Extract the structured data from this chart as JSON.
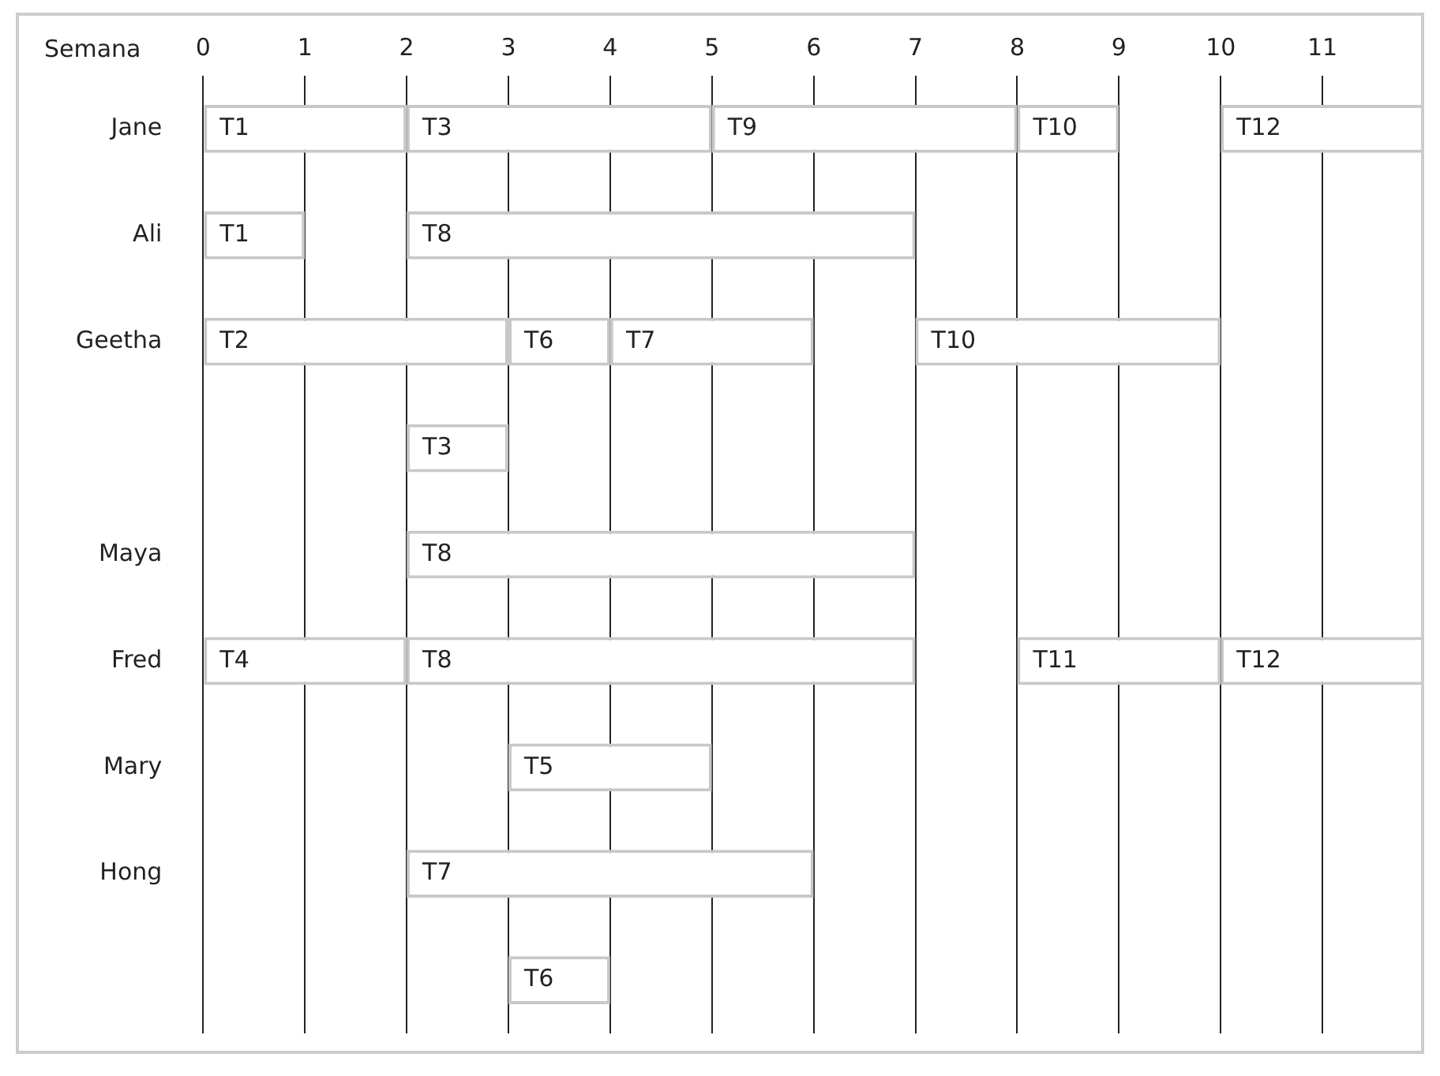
{
  "chart_data": {
    "type": "bar",
    "orientation": "horizontal",
    "xlabel": "Semana",
    "categories": [
      "Jane",
      "Ali",
      "Geetha",
      null,
      "Maya",
      "Fred",
      "Mary",
      "Hong",
      null
    ],
    "xlim": [
      0,
      12
    ],
    "xticks": [
      0,
      1,
      2,
      3,
      4,
      5,
      6,
      7,
      8,
      9,
      10,
      11
    ],
    "grid": "x",
    "legend": false,
    "series": [
      {
        "color": "#ffffff",
        "base": [
          0,
          0,
          0,
          2,
          2,
          0,
          3,
          2,
          3
        ],
        "values": [
          2,
          1,
          3,
          1,
          5,
          2,
          2,
          4,
          1
        ],
        "value_labels": [
          "T1",
          "T1",
          "T2",
          "T3",
          "T8",
          "T4",
          "T5",
          "T7",
          "T6"
        ]
      },
      {
        "color": "#ffffff",
        "base": [
          2,
          2,
          3,
          null,
          null,
          2,
          null,
          null,
          null
        ],
        "values": [
          3,
          5,
          1,
          null,
          null,
          5,
          null,
          null,
          null
        ],
        "value_labels": [
          "T3",
          "T8",
          "T6",
          null,
          null,
          "T8",
          null,
          null,
          null
        ]
      },
      {
        "color": "#ffffff",
        "base": [
          5,
          null,
          4,
          null,
          null,
          8,
          null,
          null,
          null
        ],
        "values": [
          3,
          null,
          2,
          null,
          null,
          2,
          null,
          null,
          null
        ],
        "value_labels": [
          "T9",
          null,
          "T7",
          null,
          null,
          "T11",
          null,
          null,
          null
        ]
      },
      {
        "color": "#ffffff",
        "base": [
          8,
          null,
          7,
          null,
          null,
          10,
          null,
          null,
          null
        ],
        "values": [
          1,
          null,
          3,
          null,
          null,
          2,
          null,
          null,
          null
        ],
        "value_labels": [
          "T10",
          null,
          "T10",
          null,
          null,
          "T12",
          null,
          null,
          null
        ]
      },
      {
        "color": "#ffffff",
        "base": [
          10,
          null,
          null,
          null,
          null,
          null,
          null,
          null,
          null
        ],
        "values": [
          2,
          null,
          null,
          null,
          null,
          null,
          null,
          null,
          null
        ],
        "value_labels": [
          "T12",
          null,
          null,
          null,
          null,
          null,
          null,
          null,
          null
        ]
      }
    ]
  }
}
